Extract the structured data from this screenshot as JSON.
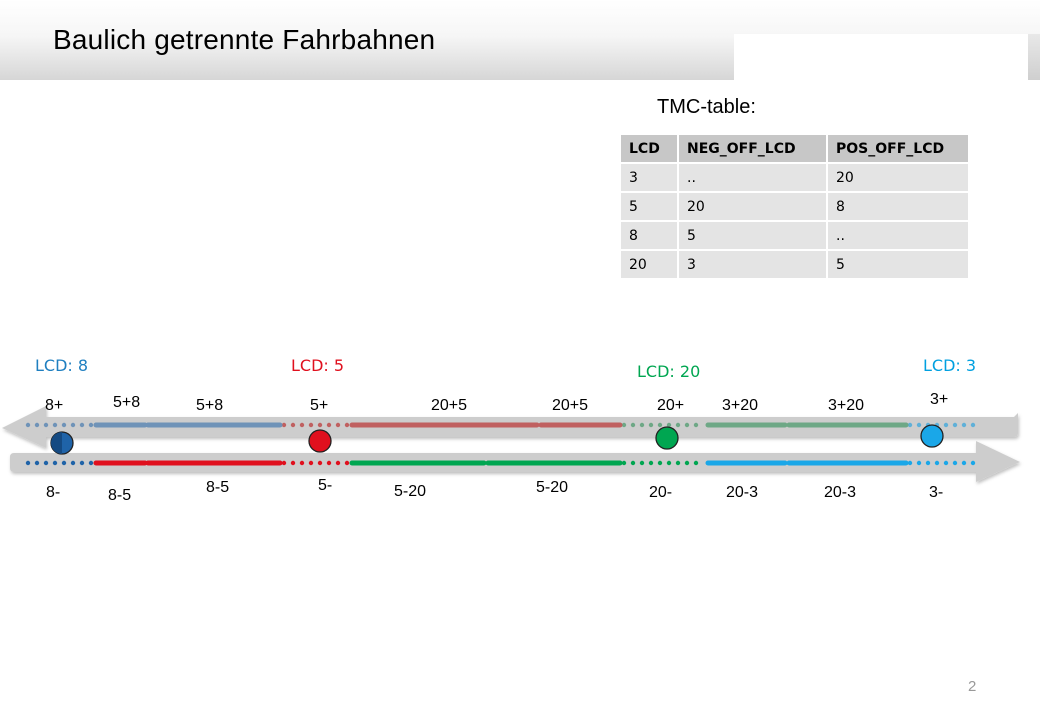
{
  "header": {
    "title": "Baulich getrennte Fahrbahnen"
  },
  "tmc_table": {
    "caption": "TMC-table:",
    "columns": [
      "LCD",
      "NEG_OFF_LCD",
      "POS_OFF_LCD"
    ],
    "rows": [
      [
        "3",
        "..",
        "20"
      ],
      [
        "5",
        "20",
        "8"
      ],
      [
        "8",
        "5",
        ".."
      ],
      [
        "20",
        "3",
        "5"
      ]
    ]
  },
  "diagram": {
    "locations": [
      {
        "label": "LCD: 8",
        "color": "#1f7fc0",
        "marker_color": "#1f63a8",
        "top_label": "8+",
        "bottom_label": "8-"
      },
      {
        "label": "LCD: 5",
        "color": "#e0101e",
        "marker_color": "#e0101e",
        "top_label": "5+",
        "bottom_label": "5-"
      },
      {
        "label": "LCD: 20",
        "color": "#00a651",
        "marker_color": "#00a651",
        "top_label": "20+",
        "bottom_label": "20-"
      },
      {
        "label": "LCD: 3",
        "color": "#00a0e0",
        "marker_color": "#1aa7e8",
        "top_label": "3+",
        "bottom_label": "3-"
      }
    ],
    "segments": [
      {
        "color_top": "#6f93b8",
        "color_bottom": "#e0101e",
        "top_labels": [
          "5+8",
          "5+8"
        ],
        "bottom_labels": [
          "8-5",
          "8-5"
        ]
      },
      {
        "color_top": "#c06060",
        "color_bottom": "#00a651",
        "top_labels": [
          "20+5",
          "20+5"
        ],
        "bottom_labels": [
          "5-20",
          "5-20"
        ]
      },
      {
        "color_top": "#6ea886",
        "color_bottom": "#1aa7e8",
        "top_labels": [
          "3+20",
          "3+20"
        ],
        "bottom_labels": [
          "20-3",
          "20-3"
        ]
      }
    ],
    "arrow_color": "#cdcdcd"
  },
  "footer": {
    "page_number": "2"
  }
}
